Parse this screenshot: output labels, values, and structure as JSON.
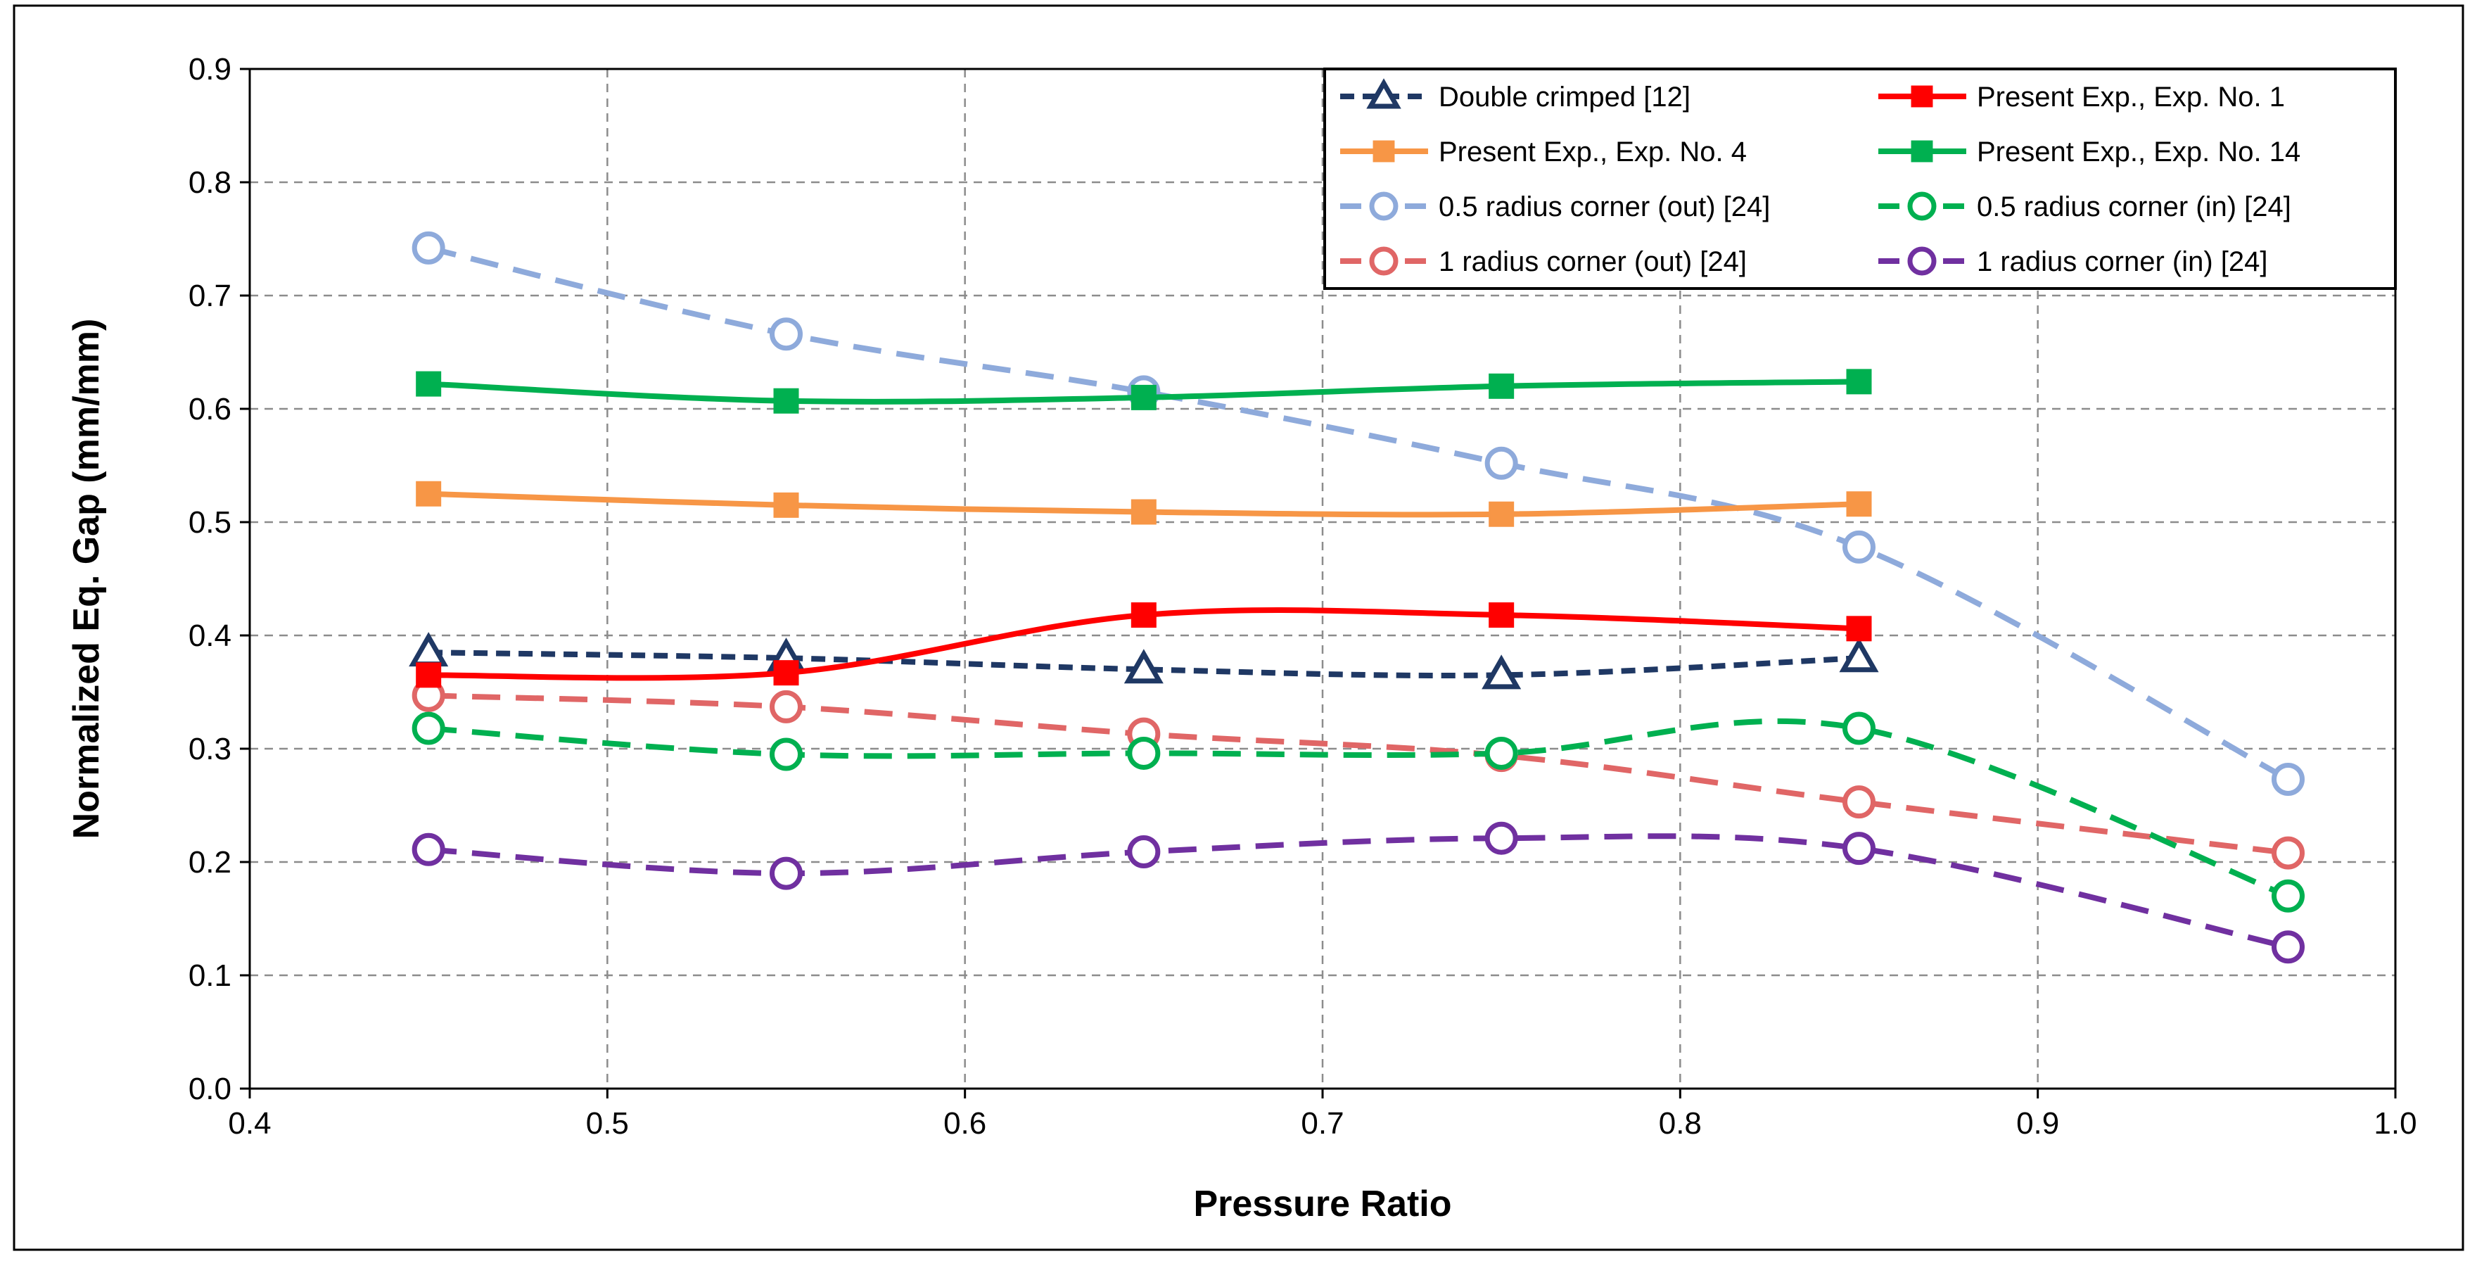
{
  "chart_data": {
    "type": "line",
    "title": "",
    "xlabel": "Pressure Ratio",
    "ylabel": "Normalized Eq. Gap (mm/mm)",
    "xlim": [
      0.4,
      1.0
    ],
    "ylim": [
      0.0,
      0.9
    ],
    "xticks": [
      "0.4",
      "0.5",
      "0.6",
      "0.7",
      "0.8",
      "0.9",
      "1.0"
    ],
    "yticks": [
      "0.0",
      "0.1",
      "0.2",
      "0.3",
      "0.4",
      "0.5",
      "0.6",
      "0.7",
      "0.8",
      "0.9"
    ],
    "grid": true,
    "legend_position": "top-right",
    "series": [
      {
        "name": "Double crimped [12]",
        "color": "#1f3864",
        "dash": "short",
        "marker": "triangle",
        "x": [
          0.45,
          0.55,
          0.65,
          0.75,
          0.85
        ],
        "y": [
          0.385,
          0.38,
          0.37,
          0.365,
          0.38
        ]
      },
      {
        "name": "Present Exp., Exp. No. 1",
        "color": "#ff0000",
        "dash": "solid",
        "marker": "square",
        "x": [
          0.45,
          0.55,
          0.65,
          0.75,
          0.85
        ],
        "y": [
          0.365,
          0.367,
          0.418,
          0.418,
          0.406
        ]
      },
      {
        "name": "Present Exp., Exp. No. 4",
        "color": "#f79646",
        "dash": "solid",
        "marker": "square",
        "x": [
          0.45,
          0.55,
          0.65,
          0.75,
          0.85
        ],
        "y": [
          0.525,
          0.515,
          0.509,
          0.507,
          0.516
        ]
      },
      {
        "name": "Present Exp., Exp. No. 14",
        "color": "#00b050",
        "dash": "solid",
        "marker": "square",
        "x": [
          0.45,
          0.55,
          0.65,
          0.75,
          0.85
        ],
        "y": [
          0.622,
          0.607,
          0.61,
          0.62,
          0.624
        ]
      },
      {
        "name": "0.5 radius corner (out) [24]",
        "color": "#8eaadb",
        "dash": "long",
        "marker": "circle",
        "x": [
          0.45,
          0.55,
          0.65,
          0.75,
          0.85,
          0.97
        ],
        "y": [
          0.742,
          0.666,
          0.615,
          0.552,
          0.478,
          0.273
        ]
      },
      {
        "name": "0.5 radius corner (in) [24]",
        "color": "#00b050",
        "dash": "long",
        "marker": "circle",
        "x": [
          0.45,
          0.55,
          0.65,
          0.75,
          0.85,
          0.97
        ],
        "y": [
          0.318,
          0.295,
          0.296,
          0.296,
          0.318,
          0.17
        ]
      },
      {
        "name": "1 radius corner (out) [24]",
        "color": "#e06666",
        "dash": "long",
        "marker": "circle",
        "x": [
          0.45,
          0.55,
          0.65,
          0.75,
          0.85,
          0.97
        ],
        "y": [
          0.347,
          0.337,
          0.313,
          0.294,
          0.253,
          0.208
        ]
      },
      {
        "name": "1 radius corner (in) [24]",
        "color": "#7030a0",
        "dash": "long",
        "marker": "circle",
        "x": [
          0.45,
          0.55,
          0.65,
          0.75,
          0.85,
          0.97
        ],
        "y": [
          0.211,
          0.19,
          0.209,
          0.221,
          0.212,
          0.125
        ]
      }
    ],
    "legend_layout": [
      [
        0,
        1
      ],
      [
        2,
        3
      ],
      [
        4,
        5
      ],
      [
        6,
        7
      ]
    ]
  }
}
